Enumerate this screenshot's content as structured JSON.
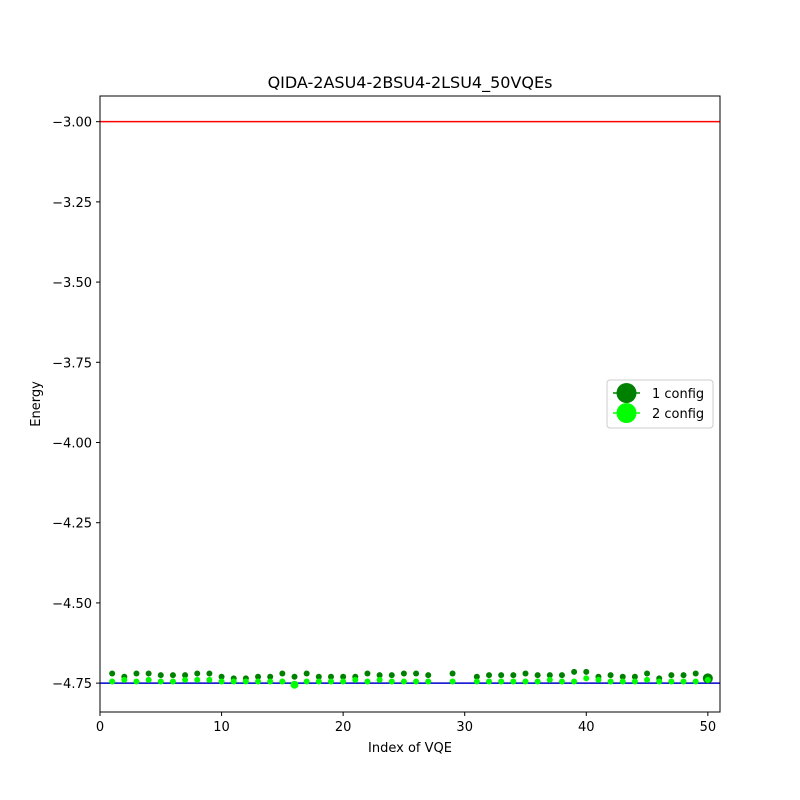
{
  "chart_data": {
    "type": "scatter",
    "title": "QIDA-2ASU4-2BSU4-2LSU4_50VQEs",
    "xlabel": "Index of VQE",
    "ylabel": "Energy",
    "xlim": [
      0,
      51
    ],
    "ylim": [
      -4.84,
      -2.92
    ],
    "xticks": [
      0,
      10,
      20,
      30,
      40,
      50
    ],
    "yticks": [
      -3.0,
      -3.25,
      -3.5,
      -3.75,
      -4.0,
      -4.25,
      -4.5,
      -4.75
    ],
    "xtick_labels": [
      "0",
      "10",
      "20",
      "30",
      "40",
      "50"
    ],
    "ytick_labels": [
      "−3.00",
      "−3.25",
      "−3.50",
      "−3.75",
      "−4.00",
      "−4.25",
      "−4.50",
      "−4.75"
    ],
    "grid": false,
    "legend_position": "center-right",
    "hlines": [
      {
        "y": -3.0,
        "color": "#ff0000"
      },
      {
        "y": -4.75,
        "color": "#0000cd"
      }
    ],
    "series": [
      {
        "name": "1 config",
        "color": "#008000",
        "x": [
          1,
          2,
          3,
          4,
          5,
          6,
          7,
          8,
          9,
          10,
          11,
          12,
          13,
          14,
          15,
          16,
          17,
          18,
          19,
          20,
          21,
          22,
          23,
          24,
          25,
          26,
          27,
          29,
          31,
          32,
          33,
          34,
          35,
          36,
          37,
          38,
          39,
          40,
          41,
          42,
          43,
          44,
          45,
          46,
          47,
          48,
          49,
          50
        ],
        "y": [
          -4.72,
          -4.73,
          -4.72,
          -4.72,
          -4.725,
          -4.725,
          -4.725,
          -4.72,
          -4.72,
          -4.73,
          -4.735,
          -4.735,
          -4.73,
          -4.73,
          -4.72,
          -4.73,
          -4.72,
          -4.73,
          -4.73,
          -4.73,
          -4.73,
          -4.72,
          -4.725,
          -4.725,
          -4.72,
          -4.72,
          -4.725,
          -4.72,
          -4.73,
          -4.725,
          -4.725,
          -4.725,
          -4.72,
          -4.725,
          -4.725,
          -4.725,
          -4.715,
          -4.715,
          -4.73,
          -4.725,
          -4.73,
          -4.73,
          -4.72,
          -4.735,
          -4.725,
          -4.725,
          -4.72,
          -4.735
        ]
      },
      {
        "name": "2 config",
        "color": "#00ff00",
        "x": [
          1,
          2,
          3,
          4,
          5,
          6,
          7,
          8,
          9,
          10,
          11,
          12,
          13,
          14,
          15,
          16,
          17,
          18,
          19,
          20,
          21,
          22,
          23,
          24,
          25,
          26,
          27,
          29,
          31,
          32,
          33,
          34,
          35,
          36,
          37,
          38,
          39,
          40,
          41,
          42,
          43,
          44,
          45,
          46,
          47,
          48,
          49,
          50
        ],
        "y": [
          -4.745,
          -4.74,
          -4.745,
          -4.74,
          -4.745,
          -4.745,
          -4.74,
          -4.74,
          -4.74,
          -4.745,
          -4.745,
          -4.745,
          -4.745,
          -4.745,
          -4.745,
          -4.755,
          -4.745,
          -4.745,
          -4.745,
          -4.745,
          -4.74,
          -4.745,
          -4.74,
          -4.745,
          -4.745,
          -4.745,
          -4.745,
          -4.745,
          -4.745,
          -4.745,
          -4.745,
          -4.745,
          -4.745,
          -4.745,
          -4.74,
          -4.745,
          -4.745,
          -4.735,
          -4.74,
          -4.745,
          -4.745,
          -4.745,
          -4.74,
          -4.745,
          -4.745,
          -4.745,
          -4.745,
          -4.74
        ]
      }
    ]
  }
}
